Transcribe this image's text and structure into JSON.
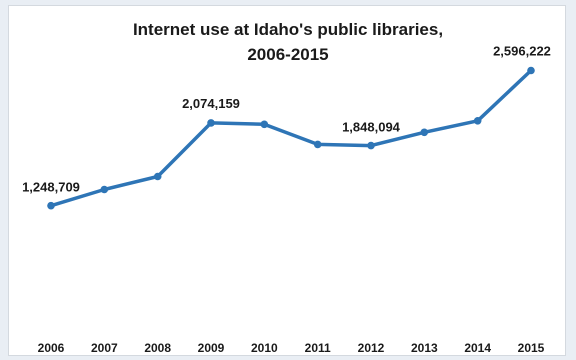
{
  "chart_data": {
    "type": "line",
    "title_lines": [
      "Internet use at Idaho's public libraries,",
      "2006-2015"
    ],
    "xlabel": "",
    "ylabel": "",
    "categories": [
      "2006",
      "2007",
      "2008",
      "2009",
      "2010",
      "2011",
      "2012",
      "2013",
      "2014",
      "2015"
    ],
    "series": [
      {
        "values": [
          1248709,
          1410000,
          1540000,
          2074159,
          2060000,
          1860000,
          1848094,
          1980000,
          2095000,
          2596222
        ],
        "color": "#2e75b6"
      }
    ],
    "data_labels": [
      {
        "index": 0,
        "text": "1,248,709"
      },
      {
        "index": 3,
        "text": "2,074,159"
      },
      {
        "index": 6,
        "text": "1,848,094"
      },
      {
        "index": 9,
        "text": "2,596,222"
      }
    ],
    "ylim": [
      0,
      3000000
    ],
    "grid": false,
    "legend": "none"
  }
}
